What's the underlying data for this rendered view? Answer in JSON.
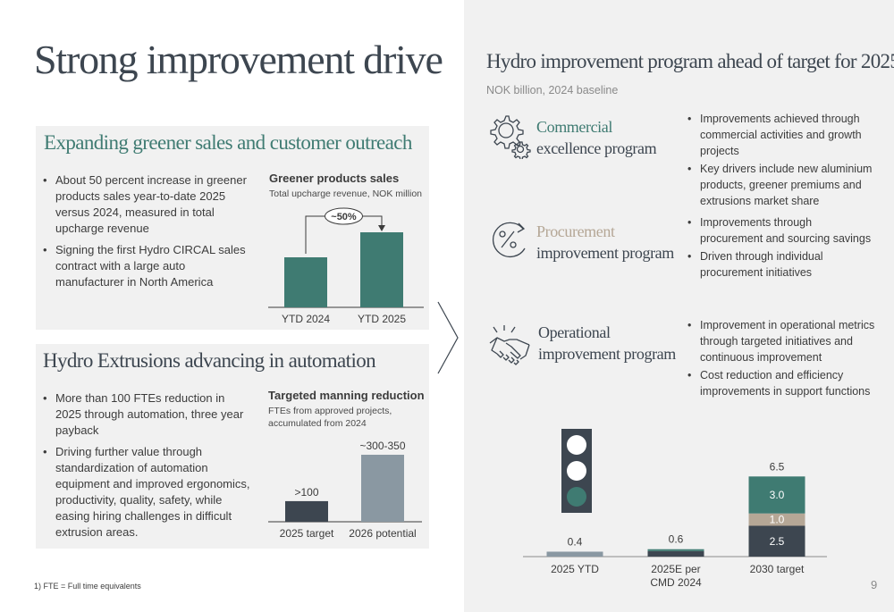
{
  "slide": {
    "title": "Strong improvement drive",
    "page_number": "9",
    "footnote": "1) FTE = Full time equivalents"
  },
  "colors": {
    "teal": "#3f7b72",
    "dark_slate": "#3d4650",
    "grey_bar": "#8a98a2",
    "taupe": "#b5a796",
    "panel_bg": "#f1f1f1"
  },
  "greener_panel": {
    "title": "Expanding greener sales and customer outreach",
    "bullets": [
      "About 50 percent increase in greener products sales year-to-date 2025 versus 2024, measured in total upcharge revenue",
      "Signing the first Hydro CIRCAL sales contract with a large auto manufacturer in North America"
    ],
    "chart_title": "Greener products sales",
    "chart_subtitle": "Total upcharge revenue, NOK million"
  },
  "extrusions_panel": {
    "title": "Hydro Extrusions advancing in automation",
    "bullets": [
      "More than 100 FTEs reduction in 2025 through automation, three year payback",
      "Driving further value through standardization of automation equipment and improved ergonomics, productivity, quality, safety, while easing hiring challenges in difficult extrusion areas."
    ],
    "chart_title": "Targeted manning reduction",
    "chart_subtitle": "FTEs from approved projects, accumulated from 2024"
  },
  "right_panel": {
    "title": "Hydro improvement program ahead of target for 2025",
    "subtitle": "NOK billion, 2024 baseline",
    "programs": [
      {
        "icon": "gears-icon",
        "title_line1": "Commercial",
        "title_line2": "excellence program",
        "accent": "#3f7b72",
        "bullets": [
          "Improvements achieved through commercial activities and growth projects",
          "Key drivers include new aluminium products, greener premiums and extrusions market share"
        ]
      },
      {
        "icon": "percent-cycle-icon",
        "title_line1": "Procurement",
        "title_line2": "improvement program",
        "accent": "#b5a796",
        "bullets": [
          "Improvements through procurement and sourcing savings",
          "Driven through individual procurement initiatives"
        ]
      },
      {
        "icon": "handshake-icon",
        "title_line1": "Operational",
        "title_line2": "improvement program",
        "accent": "#3d4650",
        "bullets": [
          "Improvement in operational metrics through targeted initiatives and continuous improvement",
          "Cost reduction and efficiency improvements in support functions"
        ]
      }
    ]
  },
  "chart_data": [
    {
      "type": "bar",
      "title": "Greener products sales",
      "subtitle": "Total upcharge revenue, NOK million",
      "categories": [
        "YTD 2024",
        "YTD 2025"
      ],
      "values": [
        100,
        150
      ],
      "value_axis_shown": false,
      "annotation": "~50%",
      "color": "#3f7b72"
    },
    {
      "type": "bar",
      "title": "Targeted manning reduction",
      "subtitle": "FTEs from approved projects, accumulated from 2024",
      "categories": [
        "2025 target",
        "2026 potential"
      ],
      "values": [
        100,
        325
      ],
      "labels": [
        ">100",
        "~300-350"
      ],
      "colors": [
        "#3d4650",
        "#8a98a2"
      ]
    },
    {
      "type": "bar",
      "stacked": true,
      "categories": [
        "2025 YTD",
        "2025E per CMD 2024",
        "2030 target"
      ],
      "category_lines": [
        [
          "2025 YTD"
        ],
        [
          "2025E per",
          "CMD 2024"
        ],
        [
          "2030 target"
        ]
      ],
      "series": [
        {
          "color": "#3d4650",
          "values": [
            0,
            0.45,
            2.5
          ],
          "segment_labels": [
            "",
            "",
            "2.5"
          ]
        },
        {
          "color": "#b5a796",
          "values": [
            0,
            0,
            1.0
          ],
          "segment_labels": [
            "",
            "",
            "1.0"
          ]
        },
        {
          "color": "#3f7b72",
          "values": [
            0,
            0.15,
            3.0
          ],
          "segment_labels": [
            "",
            "",
            "3.0"
          ]
        },
        {
          "color": "#8a98a2",
          "values": [
            0.4,
            0,
            0
          ],
          "segment_labels": [
            "",
            "",
            ""
          ]
        }
      ],
      "totals": [
        0.4,
        0.6,
        6.5
      ],
      "total_labels": [
        "0.4",
        "0.6",
        "6.5"
      ],
      "status_indicator": "traffic-light-green"
    }
  ]
}
